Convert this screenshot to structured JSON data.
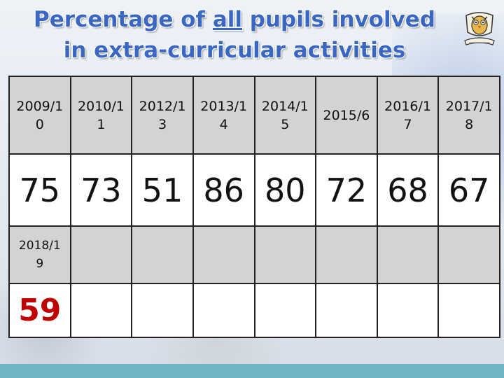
{
  "title": {
    "line1_before": "Percentage of ",
    "line1_emph": "all",
    "line1_after": " pupils involved",
    "line2": "in extra-curricular activities"
  },
  "logo_icon": "owl-crest-icon",
  "table": {
    "years": [
      [
        "2009/1",
        "0"
      ],
      [
        "2010/1",
        "1"
      ],
      [
        "2012/1",
        "3"
      ],
      [
        "2013/1",
        "4"
      ],
      [
        "2014/1",
        "5"
      ],
      [
        "2015/6"
      ],
      [
        "2016/1",
        "7"
      ],
      [
        "2017/1",
        "8"
      ]
    ],
    "values": [
      "75",
      "73",
      "51",
      "86",
      "80",
      "72",
      "68",
      "67"
    ],
    "extra_year": [
      "2018/1",
      "9"
    ],
    "extra_value": "59"
  },
  "colors": {
    "title": "#3a66c4",
    "header_bg": "#d3d3d3",
    "highlight_value": "#c00000",
    "bottom_bar": "#6fb6c4"
  }
}
